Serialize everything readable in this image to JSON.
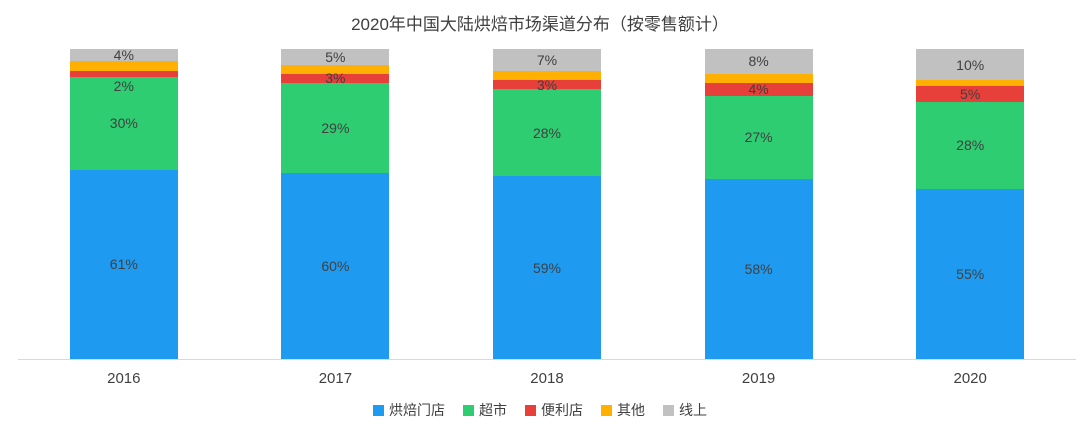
{
  "title": "2020年中国大陆烘焙市场渠道分布（按零售额计）",
  "chart_data": {
    "type": "bar",
    "stacked": true,
    "unit": "percent",
    "title": "2020年中国大陆烘焙市场渠道分布（按零售额计）",
    "categories": [
      "2016",
      "2017",
      "2018",
      "2019",
      "2020"
    ],
    "series": [
      {
        "key": "bakery-store",
        "name": "烘焙门店",
        "color": "#1e9bf0",
        "values": [
          61,
          60,
          59,
          58,
          55
        ],
        "labels": [
          "61%",
          "60%",
          "59%",
          "58%",
          "55%"
        ]
      },
      {
        "key": "supermarket",
        "name": "超市",
        "color": "#2ecd71",
        "values": [
          30,
          29,
          28,
          27,
          28
        ],
        "labels": [
          "30%",
          "29%",
          "28%",
          "27%",
          "28%"
        ]
      },
      {
        "key": "convenience-store",
        "name": "便利店",
        "color": "#e7403a",
        "values": [
          2,
          3,
          3,
          4,
          5
        ],
        "labels": [
          "2%",
          "3%",
          "3%",
          "4%",
          "5%"
        ]
      },
      {
        "key": "other",
        "name": "其他",
        "color": "#ffb000",
        "values": [
          3,
          3,
          3,
          3,
          2
        ],
        "labels": [
          "",
          "",
          "",
          "",
          ""
        ]
      },
      {
        "key": "online",
        "name": "线上",
        "color": "#c1c1c1",
        "values": [
          4,
          5,
          7,
          8,
          10
        ],
        "labels": [
          "4%",
          "5%",
          "7%",
          "8%",
          "10%"
        ]
      }
    ],
    "ylim": [
      0,
      100
    ],
    "grid": false,
    "y_axis_visible": false,
    "legend_position": "bottom",
    "colors": {
      "label_text": "#404040",
      "axis_line": "#d9d9d9",
      "background": "#ffffff"
    }
  }
}
